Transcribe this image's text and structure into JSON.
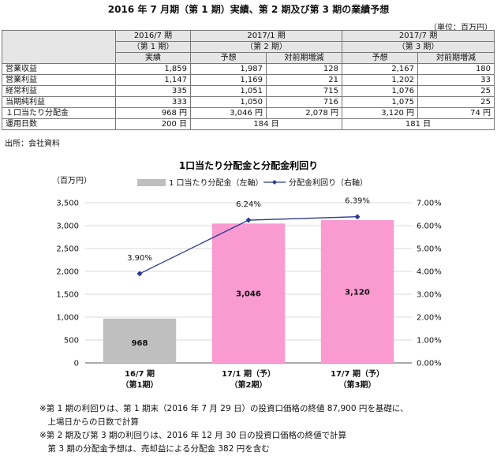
{
  "table": {
    "title": "2016 年 7 月期（第 1 期）実績、第 2 期及び第 3 期の業績予想",
    "unit": "（単位：百万円）",
    "header": {
      "p1_line1": "2016/7 期",
      "p1_line2": "（第 1 期）",
      "p2_line1": "2017/1 期",
      "p2_line2": "（第 2 期）",
      "p3_line1": "2017/7 期",
      "p3_line2": "（第 3 期）",
      "actual": "実績",
      "forecast": "予想",
      "change": "対前期増減",
      "forecast3": "予想",
      "change3": "対前期増減"
    },
    "rows": [
      {
        "label": "営業収益",
        "v1": "1,859",
        "v2": "1,987",
        "v3": "128",
        "v4": "2,167",
        "v5": "180"
      },
      {
        "label": "営業利益",
        "v1": "1,147",
        "v2": "1,169",
        "v3": "21",
        "v4": "1,202",
        "v5": "33"
      },
      {
        "label": "経常利益",
        "v1": "335",
        "v2": "1,051",
        "v3": "715",
        "v4": "1,076",
        "v5": "25"
      },
      {
        "label": "当期純利益",
        "v1": "333",
        "v2": "1,050",
        "v3": "716",
        "v4": "1,075",
        "v5": "25"
      },
      {
        "label": "１口当たり分配金",
        "v1": "968 円",
        "v2": "3,046 円",
        "v3": "2,078 円",
        "v4": "3,120 円",
        "v5": "74 円"
      }
    ],
    "days": {
      "label": "運用日数",
      "v1": "200 日",
      "v2": "184 日",
      "v4": "181 日"
    },
    "source": "出所：会社資料"
  },
  "chart_data": {
    "type": "bar",
    "title": "1口当たり分配金と分配金利回り",
    "y_left_label": "（百万円）",
    "categories": [
      "16/7 期\n（第1期）",
      "17/1 期（予）\n（第2期）",
      "17/7 期（予）\n（第3期）"
    ],
    "series": [
      {
        "name": "1 口当たり分配金（左軸）",
        "type": "bar",
        "axis": "left",
        "values": [
          968,
          3046,
          3120
        ],
        "labels": [
          "968",
          "3,046",
          "3,120"
        ],
        "colors": [
          "#bfbfbf",
          "#f99ad0",
          "#f99ad0"
        ]
      },
      {
        "name": "分配金利回り（右軸）",
        "type": "line",
        "axis": "right",
        "values": [
          3.9,
          6.24,
          6.39
        ],
        "labels": [
          "3.90%",
          "6.24%",
          "6.39%"
        ],
        "color": "#2b3990"
      }
    ],
    "y_left": {
      "min": 0,
      "max": 3500,
      "ticks": [
        0,
        500,
        1000,
        1500,
        2000,
        2500,
        3000,
        3500
      ],
      "tick_labels": [
        "0",
        "500",
        "1,000",
        "1,500",
        "2,000",
        "2,500",
        "3,000",
        "3,500"
      ]
    },
    "y_right": {
      "min": 0,
      "max": 7,
      "ticks": [
        0,
        1,
        2,
        3,
        4,
        5,
        6,
        7
      ],
      "tick_labels": [
        "0.00%",
        "1.00%",
        "2.00%",
        "3.00%",
        "4.00%",
        "5.00%",
        "6.00%",
        "7.00%"
      ]
    },
    "grid": true,
    "legend_position": "top"
  },
  "notes": [
    "※第 1 期の利回りは、第 1 期末（2016 年 7 月 29 日）の投資口価格の終値 87,900 円を基礎に、",
    "　上場日からの日数で計算",
    "※第 2 期及び第 3 期の利回りは、2016 年 12 月 30 日の投資口価格の終値で計算",
    "　第 3 期の分配金予想は、売却益による分配金 382 円を含む"
  ]
}
